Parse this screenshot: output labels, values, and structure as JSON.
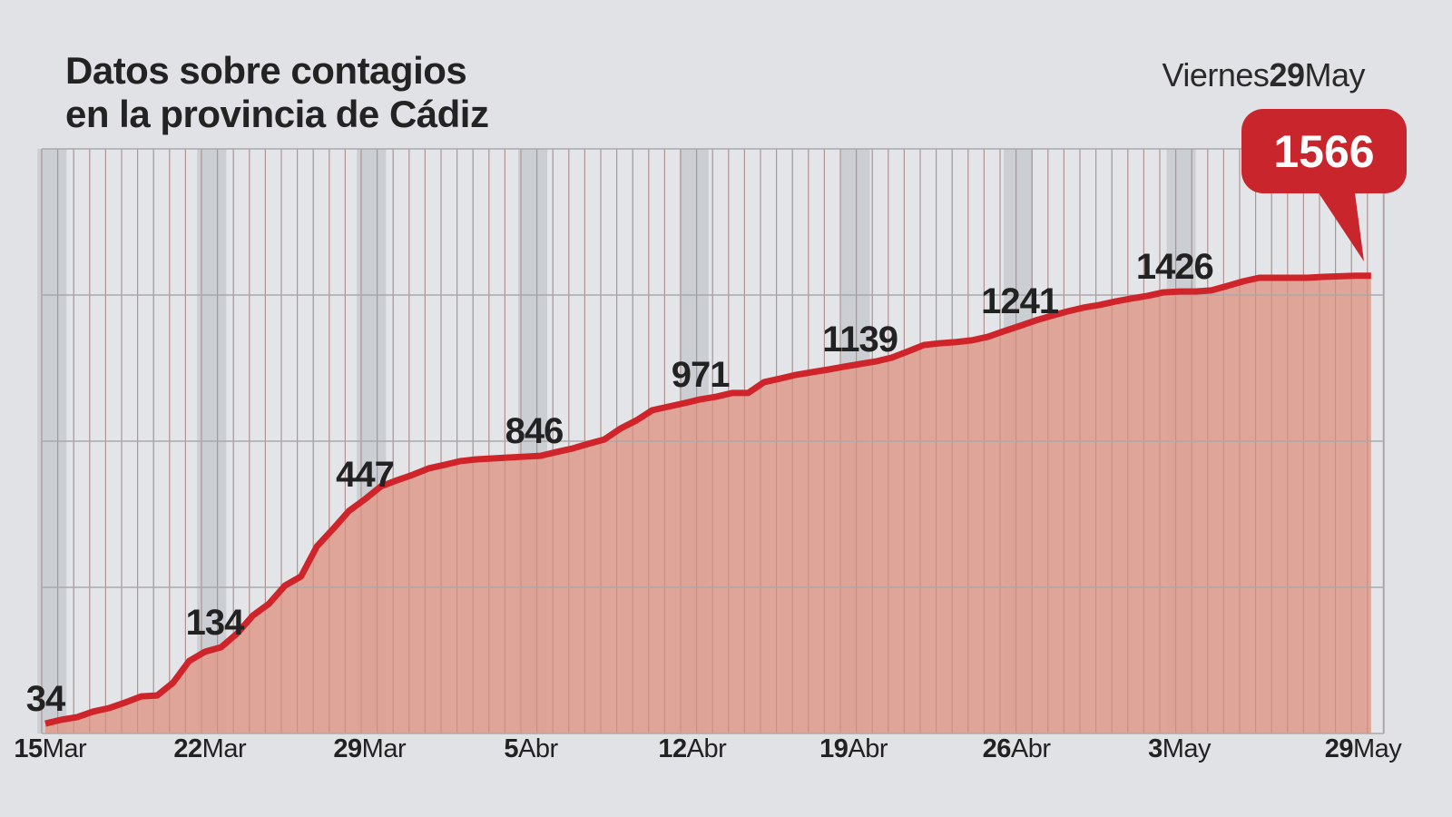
{
  "header": {
    "title_line1": "Datos sobre contagios",
    "title_line2": "en la provincia de Cádiz",
    "date_weekday": "Viernes",
    "date_day": "29",
    "date_month": "May"
  },
  "colors": {
    "line": "#d0242b",
    "fill": "#e0a091",
    "callout": "#c9252c",
    "background": "#e1e2e5",
    "grid": "#a9a9ab",
    "band": "#cbced2"
  },
  "chart_data": {
    "type": "area",
    "title": "Datos sobre contagios en la provincia de Cádiz",
    "xlabel": "",
    "ylabel": "",
    "ylim": [
      0,
      2000
    ],
    "grid": true,
    "y_gridlines": [
      0,
      500,
      1000,
      1500,
      2000
    ],
    "x_ticks": [
      {
        "num": "15",
        "month": "Mar",
        "x": 0.3
      },
      {
        "num": "22",
        "month": "Mar",
        "x": 10.3
      },
      {
        "num": "29",
        "month": "Mar",
        "x": 20.3
      },
      {
        "num": "5",
        "month": "Abr",
        "x": 30.4
      },
      {
        "num": "12",
        "month": "Abr",
        "x": 40.5
      },
      {
        "num": "19",
        "month": "Abr",
        "x": 50.6
      },
      {
        "num": "26",
        "month": "Abr",
        "x": 60.8
      },
      {
        "num": "3",
        "month": "May",
        "x": 71
      },
      {
        "num": "29",
        "month": "May",
        "x": 82.5
      }
    ],
    "values": [
      34,
      47,
      56,
      75,
      87,
      106,
      127,
      130,
      174,
      248,
      280,
      295,
      342,
      404,
      444,
      506,
      537,
      640,
      699,
      761,
      801,
      845,
      866,
      885,
      907,
      919,
      932,
      938,
      941,
      944,
      947,
      950,
      963,
      975,
      991,
      1006,
      1043,
      1071,
      1106,
      1118,
      1130,
      1143,
      1152,
      1165,
      1165,
      1202,
      1214,
      1227,
      1236,
      1245,
      1255,
      1264,
      1273,
      1286,
      1307,
      1329,
      1335,
      1339,
      1345,
      1357,
      1376,
      1394,
      1413,
      1429,
      1444,
      1457,
      1466,
      1478,
      1488,
      1497,
      1509,
      1512,
      1512,
      1516,
      1531,
      1547,
      1559,
      1559,
      1559,
      1559,
      1562,
      1564,
      1566,
      1566
    ],
    "annotations": [
      {
        "label": "34",
        "x": 0
      },
      {
        "label": "134",
        "x": 10.6
      },
      {
        "label": "447",
        "x": 20
      },
      {
        "label": "846",
        "x": 30.6
      },
      {
        "label": "971",
        "x": 41
      },
      {
        "label": "1139",
        "x": 51
      },
      {
        "label": "1241",
        "x": 61
      },
      {
        "label": "1426",
        "x": 70.7
      }
    ],
    "callout": {
      "label": "1566"
    }
  }
}
